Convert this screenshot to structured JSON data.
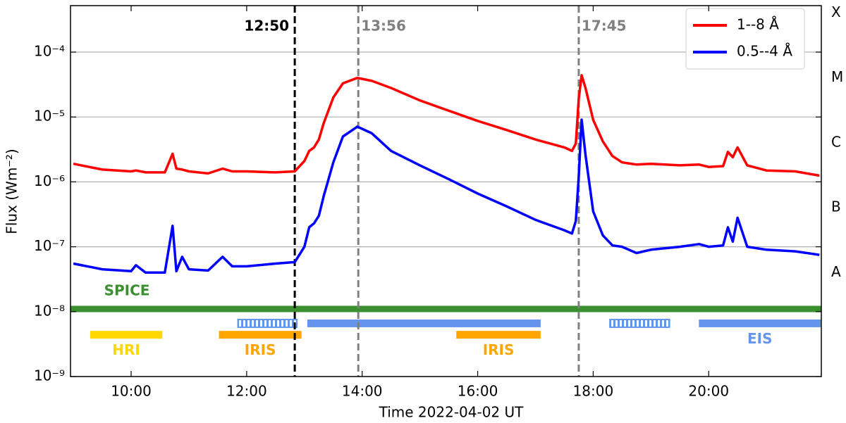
{
  "chart_data": {
    "type": "line",
    "x_label": "Time 2022-04-02 UT",
    "y_label": "Flux (Wm⁻²)",
    "log_y": true,
    "grid": true,
    "legend": "upper right",
    "xlim": [
      8.95,
      21.95
    ],
    "xticks": [
      {
        "value": 10,
        "label": "10:00"
      },
      {
        "value": 12,
        "label": "12:00"
      },
      {
        "value": 14,
        "label": "14:00"
      },
      {
        "value": 16,
        "label": "16:00"
      },
      {
        "value": 18,
        "label": "18:00"
      },
      {
        "value": 20,
        "label": "20:00"
      }
    ],
    "ylim": [
      1e-09,
      0.00052
    ],
    "yticks": [
      {
        "value": 1e-09,
        "label": "10⁻⁹"
      },
      {
        "value": 1e-08,
        "label": "10⁻⁸"
      },
      {
        "value": 1e-07,
        "label": "10⁻⁷"
      },
      {
        "value": 1e-06,
        "label": "10⁻⁶"
      },
      {
        "value": 1e-05,
        "label": "10⁻⁵"
      },
      {
        "value": 0.0001,
        "label": "10⁻⁴"
      }
    ],
    "y2ticks": [
      {
        "value": 4e-08,
        "label": "A"
      },
      {
        "value": 4e-07,
        "label": "B"
      },
      {
        "value": 4e-06,
        "label": "C"
      },
      {
        "value": 4e-05,
        "label": "M"
      },
      {
        "value": 0.0004,
        "label": "X"
      }
    ],
    "x": [
      9.0,
      9.5,
      10.0,
      10.083,
      10.25,
      10.583,
      10.717,
      10.783,
      10.883,
      11.0,
      11.333,
      11.583,
      11.75,
      12.0,
      12.5,
      12.833,
      13.0,
      13.083,
      13.167,
      13.25,
      13.333,
      13.5,
      13.667,
      13.917,
      14.167,
      14.5,
      15.0,
      15.5,
      16.0,
      16.5,
      17.0,
      17.5,
      17.633,
      17.7,
      17.75,
      17.8,
      17.867,
      18.0,
      18.167,
      18.333,
      18.5,
      18.75,
      19.0,
      19.5,
      19.833,
      20.0,
      20.25,
      20.333,
      20.417,
      20.5,
      20.667,
      21.0,
      21.5,
      21.917
    ],
    "series": [
      {
        "name": "1--8 Å",
        "color": "#ff0000",
        "values": [
          1.9e-06,
          1.55e-06,
          1.45e-06,
          1.5e-06,
          1.4e-06,
          1.4e-06,
          2.7e-06,
          1.6e-06,
          1.55e-06,
          1.45e-06,
          1.35e-06,
          1.6e-06,
          1.45e-06,
          1.45e-06,
          1.4e-06,
          1.45e-06,
          2.1e-06,
          3e-06,
          3.4e-06,
          4.5e-06,
          8e-06,
          2e-05,
          3.3e-05,
          4e-05,
          3.6e-05,
          2.8e-05,
          1.8e-05,
          1.25e-05,
          8.7e-06,
          6.3e-06,
          4.5e-06,
          3.4e-06,
          3e-06,
          3.9e-06,
          1.9e-05,
          4.4e-05,
          2.8e-05,
          9e-06,
          4.2e-06,
          2.5e-06,
          2e-06,
          1.85e-06,
          1.9e-06,
          1.8e-06,
          1.85e-06,
          1.7e-06,
          1.75e-06,
          2.9e-06,
          2.4e-06,
          3.4e-06,
          1.8e-06,
          1.5e-06,
          1.45e-06,
          1.25e-06
        ]
      },
      {
        "name": "0.5--4 Å",
        "color": "#0000ff",
        "values": [
          5.5e-08,
          4.5e-08,
          4.2e-08,
          5.2e-08,
          4e-08,
          4e-08,
          2.1e-07,
          4.2e-08,
          7e-08,
          4.5e-08,
          4.3e-08,
          7e-08,
          5e-08,
          5e-08,
          5.5e-08,
          5.8e-08,
          1e-07,
          2e-07,
          2.3e-07,
          3e-07,
          6e-07,
          2e-06,
          5e-06,
          7.1e-06,
          5.6e-06,
          3e-06,
          1.8e-06,
          1.1e-06,
          6.6e-07,
          4.2e-07,
          2.6e-07,
          1.8e-07,
          1.6e-07,
          2.5e-07,
          1.2e-06,
          9.1e-06,
          2.6e-06,
          3.5e-07,
          1.5e-07,
          1.05e-07,
          1e-07,
          8e-08,
          9e-08,
          1e-07,
          1.1e-07,
          1e-07,
          1.05e-07,
          2e-07,
          1.2e-07,
          2.8e-07,
          1e-07,
          9e-08,
          8.5e-08,
          7.5e-08
        ]
      }
    ],
    "annotations": [
      {
        "x": 12.833,
        "label": "12:50",
        "color": "#000000",
        "side": "left"
      },
      {
        "x": 13.933,
        "label": "13:56",
        "color": "#808080",
        "side": "right"
      },
      {
        "x": 17.75,
        "label": "17:45",
        "color": "#808080",
        "side": "right"
      }
    ],
    "instruments": [
      {
        "name": "SPICE",
        "color": "#3a8f2e",
        "level": 1.1e-08,
        "spans": [
          {
            "start": 8.95,
            "end": 21.95,
            "style": "solid",
            "label": "SPICE"
          }
        ]
      },
      {
        "name": "HRI",
        "color": "#ffd700",
        "level": 4.4e-09,
        "spans": [
          {
            "start": 9.29,
            "end": 10.54,
            "style": "solid",
            "label": "HRI"
          }
        ]
      },
      {
        "name": "IRIS",
        "color": "#ffa500",
        "level": 4.4e-09,
        "spans": [
          {
            "start": 11.52,
            "end": 12.95,
            "style": "solid",
            "label": "IRIS"
          },
          {
            "start": 15.63,
            "end": 17.09,
            "style": "solid",
            "label": "IRIS"
          }
        ]
      },
      {
        "name": "EIS",
        "color": "#6495ed",
        "level": 6.6e-09,
        "spans": [
          {
            "start": 11.85,
            "end": 12.87,
            "style": "hatched"
          },
          {
            "start": 13.05,
            "end": 17.09,
            "style": "solid"
          },
          {
            "start": 18.29,
            "end": 19.32,
            "style": "hatched"
          },
          {
            "start": 19.83,
            "end": 21.94,
            "style": "solid",
            "label": "EIS"
          }
        ]
      }
    ]
  }
}
